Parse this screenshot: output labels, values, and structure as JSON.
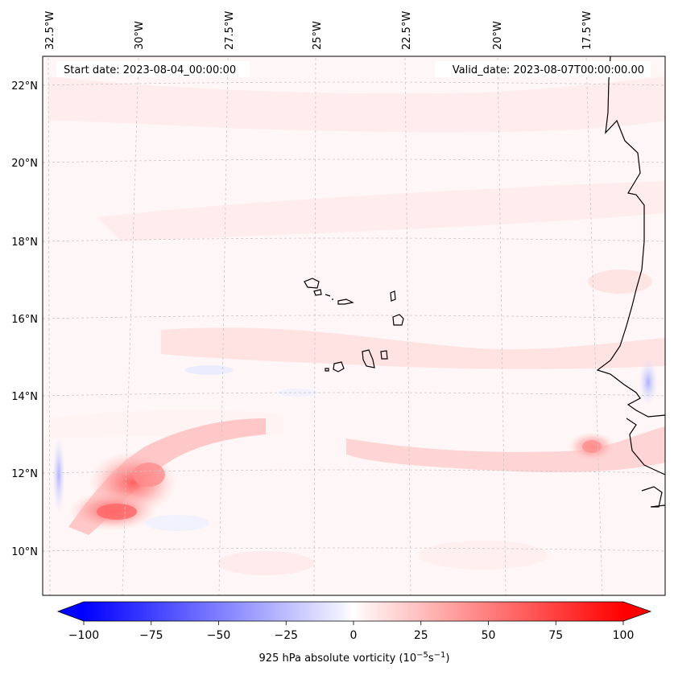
{
  "map": {
    "start_date": "Start date: 2023-08-04_00:00:00",
    "valid_date": "Valid_date: 2023-08-07T00:00:00.00",
    "lon_labels": [
      "32.5°W",
      "30°W",
      "27.5°W",
      "25°W",
      "22.5°W",
      "20°W",
      "17.5°W"
    ],
    "lat_labels": [
      "22°N",
      "20°N",
      "18°N",
      "16°N",
      "14°N",
      "12°N",
      "10°N"
    ],
    "colors": {
      "coast": "#000000",
      "grid": "#c8c8c8",
      "background": "#fff6f6"
    }
  },
  "colorbar": {
    "ticks": [
      "−100",
      "−75",
      "−50",
      "−25",
      "0",
      "25",
      "50",
      "75",
      "100"
    ],
    "min": -100,
    "max": 100,
    "label": "925 hPa absolute vorticity (10",
    "label_exp1": "−5",
    "label_mid": "s",
    "label_exp2": "−1",
    "label_end": ")"
  }
}
